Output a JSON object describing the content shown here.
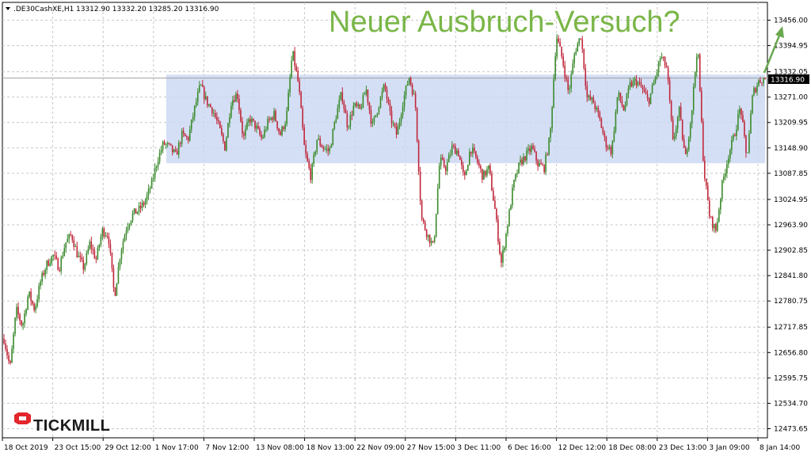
{
  "header": {
    "symbol": ".DE30CashXE,H1",
    "ohlc": "13312.90 13332.20 13285.20 13316.90"
  },
  "headline": "Neuer Ausbruch-Versuch?",
  "logo": {
    "text": "TICKMILL",
    "color": "#e3262b"
  },
  "colors": {
    "bull": "#3a8a2c",
    "bear": "#c0273a",
    "zone": "#c9d7f3",
    "grid": "#c8c8c8",
    "arrow": "#6aa84f",
    "price_label_bg": "#000000"
  },
  "current_price": {
    "value": 13316.9,
    "label": "13316.90"
  },
  "chart_data": {
    "type": "candlestick",
    "title": "",
    "y_ticks": [
      "13456.00",
      "13394.95",
      "13332.05",
      "13271.00",
      "13209.95",
      "13148.90",
      "13087.85",
      "13024.95",
      "12963.90",
      "12902.85",
      "12841.80",
      "12780.75",
      "12717.85",
      "12656.80",
      "12595.75",
      "12534.70",
      "12473.65"
    ],
    "x_ticks": [
      "18 Oct 2019",
      "23 Oct 15:00",
      "29 Oct 12:00",
      "1 Nov 17:00",
      "7 Nov 12:00",
      "13 Nov 08:00",
      "18 Nov 13:00",
      "22 Nov 09:00",
      "27 Nov 15:00",
      "3 Dec 11:00",
      "6 Dec 16:00",
      "12 Dec 12:00",
      "18 Dec 08:00",
      "23 Dec 13:00",
      "3 Jan 09:00",
      "8 Jan 14:00"
    ],
    "ylim": [
      12460,
      13480
    ],
    "consolidation_zone": {
      "from_tick": "1 Nov 17:00",
      "low": 13112,
      "high": 13325
    },
    "path": [
      12690,
      12620,
      12760,
      12720,
      12800,
      12760,
      12830,
      12870,
      12890,
      12860,
      12920,
      12940,
      12890,
      12860,
      12920,
      12880,
      12950,
      12940,
      12790,
      12900,
      12960,
      12990,
      13000,
      13020,
      13060,
      13120,
      13160,
      13150,
      13130,
      13180,
      13170,
      13240,
      13300,
      13260,
      13240,
      13200,
      13150,
      13260,
      13280,
      13170,
      13220,
      13200,
      13170,
      13210,
      13230,
      13180,
      13220,
      13380,
      13300,
      13140,
      13080,
      13170,
      13150,
      13140,
      13220,
      13280,
      13200,
      13250,
      13240,
      13290,
      13200,
      13250,
      13300,
      13220,
      13180,
      13260,
      13320,
      13260,
      12980,
      12940,
      12910,
      13120,
      13100,
      13150,
      13140,
      13070,
      13150,
      13120,
      13080,
      13100,
      13000,
      12870,
      12960,
      13060,
      13110,
      13130,
      13150,
      13110,
      13100,
      13180,
      13420,
      13360,
      13280,
      13380,
      13420,
      13270,
      13260,
      13220,
      13160,
      13140,
      13280,
      13240,
      13300,
      13310,
      13290,
      13260,
      13310,
      13370,
      13340,
      13160,
      13240,
      13120,
      13230,
      13400,
      13100,
      12980,
      12950,
      13060,
      13130,
      13180,
      13250,
      13120,
      13280,
      13310,
      13316
    ]
  }
}
